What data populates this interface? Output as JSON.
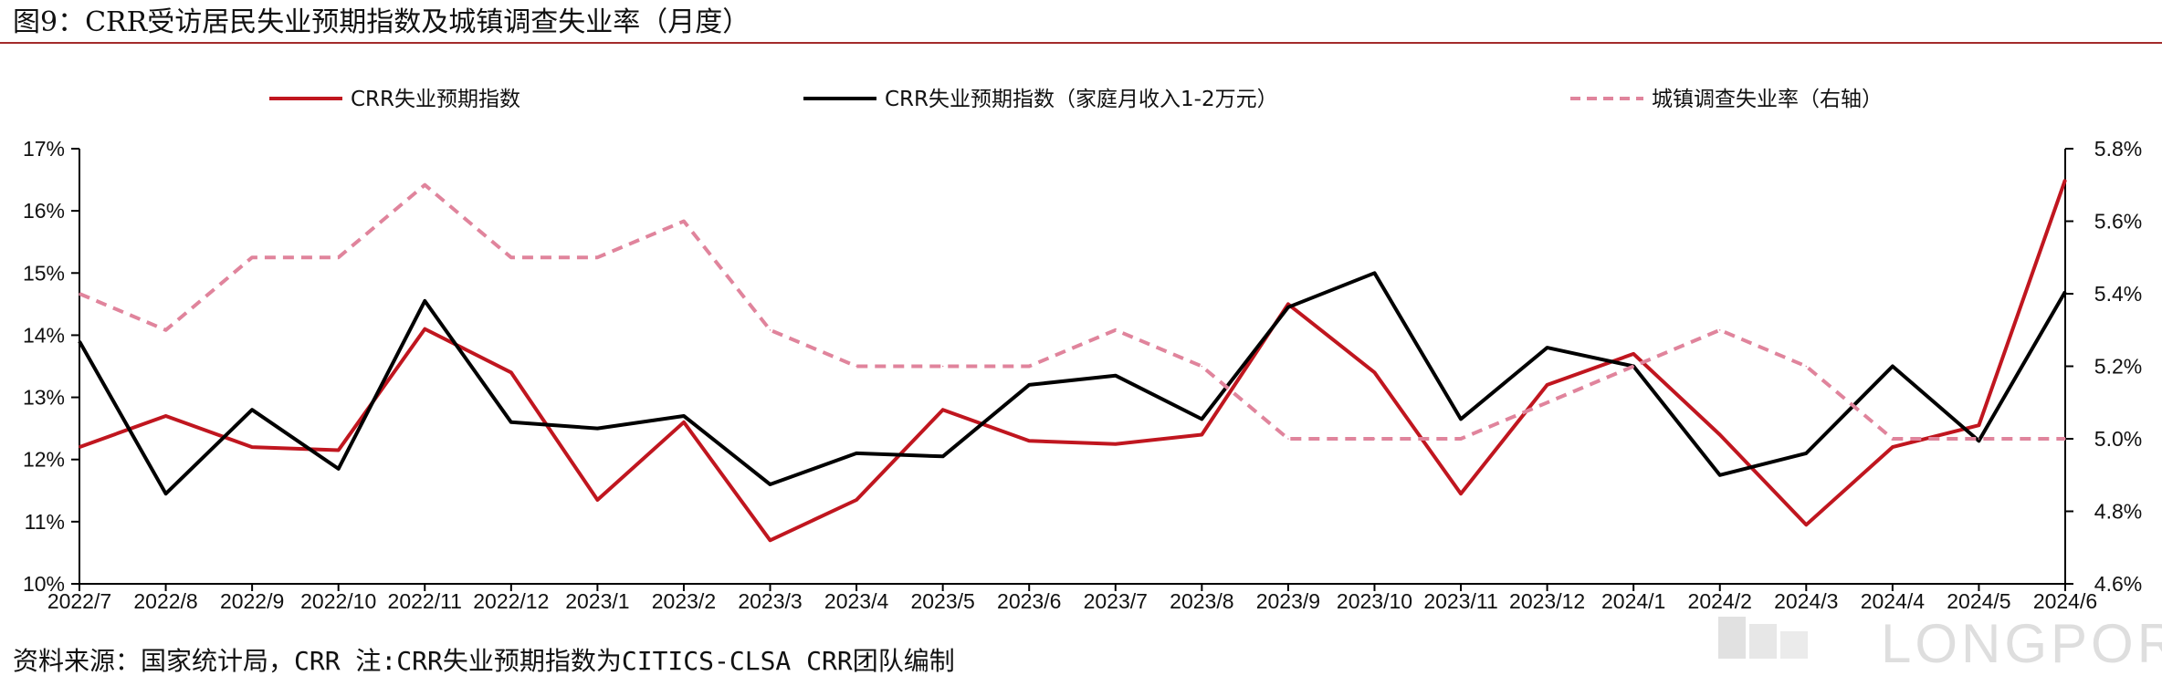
{
  "figure_title": "图9：CRR受访居民失业预期指数及城镇调查失业率（月度）",
  "source_note": "资料来源：国家统计局，CRR 注:CRR失业预期指数为CITICS-CLSA CRR团队编制",
  "watermark": "LONGPORT",
  "colors": {
    "title_rule": "#a32b2b",
    "series_red": "#c0161f",
    "series_black": "#000000",
    "series_pink": "#e0849c",
    "axis": "#000000"
  },
  "chart_data": {
    "type": "line",
    "title": "",
    "xlabel": "",
    "ylabel": "",
    "categories": [
      "2022/7",
      "2022/8",
      "2022/9",
      "2022/10",
      "2022/11",
      "2022/12",
      "2023/1",
      "2023/2",
      "2023/3",
      "2023/4",
      "2023/5",
      "2023/6",
      "2023/7",
      "2023/8",
      "2023/9",
      "2023/10",
      "2023/11",
      "2023/12",
      "2024/1",
      "2024/2",
      "2024/3",
      "2024/4",
      "2024/5",
      "2024/6"
    ],
    "y_left": {
      "ylim": [
        10,
        17
      ],
      "ticks": [
        10,
        11,
        12,
        13,
        14,
        15,
        16,
        17
      ],
      "tick_labels": [
        "10%",
        "11%",
        "12%",
        "13%",
        "14%",
        "15%",
        "16%",
        "17%"
      ]
    },
    "y_right": {
      "ylim": [
        4.6,
        5.8
      ],
      "ticks": [
        4.6,
        4.8,
        5.0,
        5.2,
        5.4,
        5.6,
        5.8
      ],
      "tick_labels": [
        "4.6%",
        "4.8%",
        "5.0%",
        "5.2%",
        "5.4%",
        "5.6%",
        "5.8%"
      ]
    },
    "grid": false,
    "legend_position": "top",
    "series": [
      {
        "name": "CRR失业预期指数",
        "axis": "left",
        "color": "#c0161f",
        "style": "solid",
        "values": [
          12.2,
          12.7,
          12.2,
          12.15,
          14.1,
          13.4,
          11.35,
          12.6,
          10.7,
          11.35,
          12.8,
          12.3,
          12.25,
          12.4,
          14.5,
          13.4,
          11.45,
          13.2,
          13.7,
          12.4,
          10.95,
          12.2,
          12.55,
          16.5
        ]
      },
      {
        "name": "CRR失业预期指数（家庭月收入1-2万元）",
        "axis": "left",
        "color": "#000000",
        "style": "solid",
        "values": [
          13.9,
          11.45,
          12.8,
          11.85,
          14.55,
          12.6,
          12.5,
          12.7,
          11.6,
          12.1,
          12.05,
          13.2,
          13.35,
          12.65,
          14.45,
          15.0,
          12.65,
          13.8,
          13.5,
          11.75,
          12.1,
          13.5,
          12.3,
          14.7
        ]
      },
      {
        "name": "城镇调查失业率（右轴）",
        "axis": "right",
        "color": "#e0849c",
        "style": "dashed",
        "values": [
          5.4,
          5.3,
          5.5,
          5.5,
          5.7,
          5.5,
          5.5,
          5.6,
          5.3,
          5.2,
          5.2,
          5.2,
          5.3,
          5.2,
          5.0,
          5.0,
          5.0,
          5.1,
          5.2,
          5.3,
          5.2,
          5.0,
          5.0,
          5.0
        ]
      }
    ]
  }
}
